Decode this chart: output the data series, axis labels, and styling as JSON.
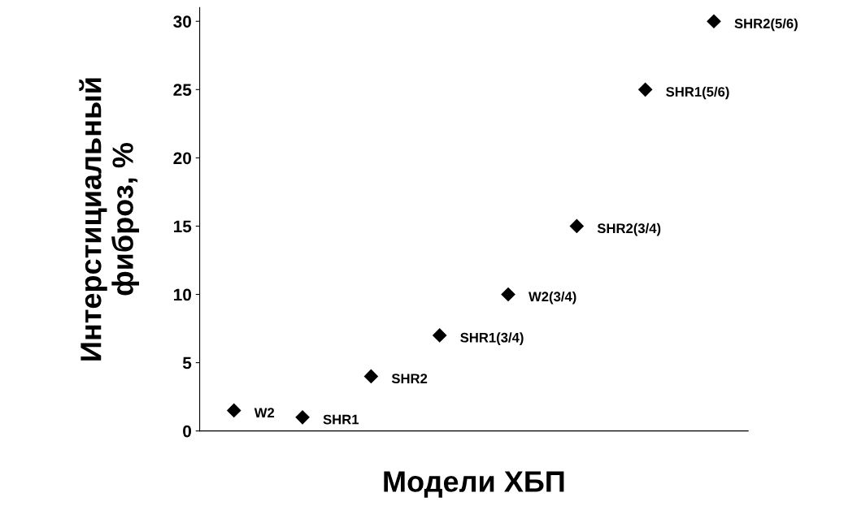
{
  "chart_data": {
    "type": "scatter",
    "xlabel": "Модели ХБП",
    "ylabel": "Интерстициальный\nфиброз, %",
    "categories": [
      null,
      null,
      null,
      null,
      null,
      null,
      null,
      null
    ],
    "series": [
      {
        "color": "#000000",
        "values": [
          1.5,
          1,
          4,
          7,
          10,
          15,
          25,
          30
        ],
        "value_labels": [
          "W2",
          "SHR1",
          "SHR2",
          "SHR1(3/4)",
          "W2(3/4)",
          "SHR2(3/4)",
          "SHR1(5/6)",
          "SHR2(5/6)"
        ]
      }
    ],
    "ylim": [
      0,
      31
    ],
    "yticks": [
      0,
      5,
      10,
      15,
      20,
      25,
      30
    ],
    "tick_labels": "y",
    "grid": false,
    "legend": false,
    "marker": "diamond"
  }
}
